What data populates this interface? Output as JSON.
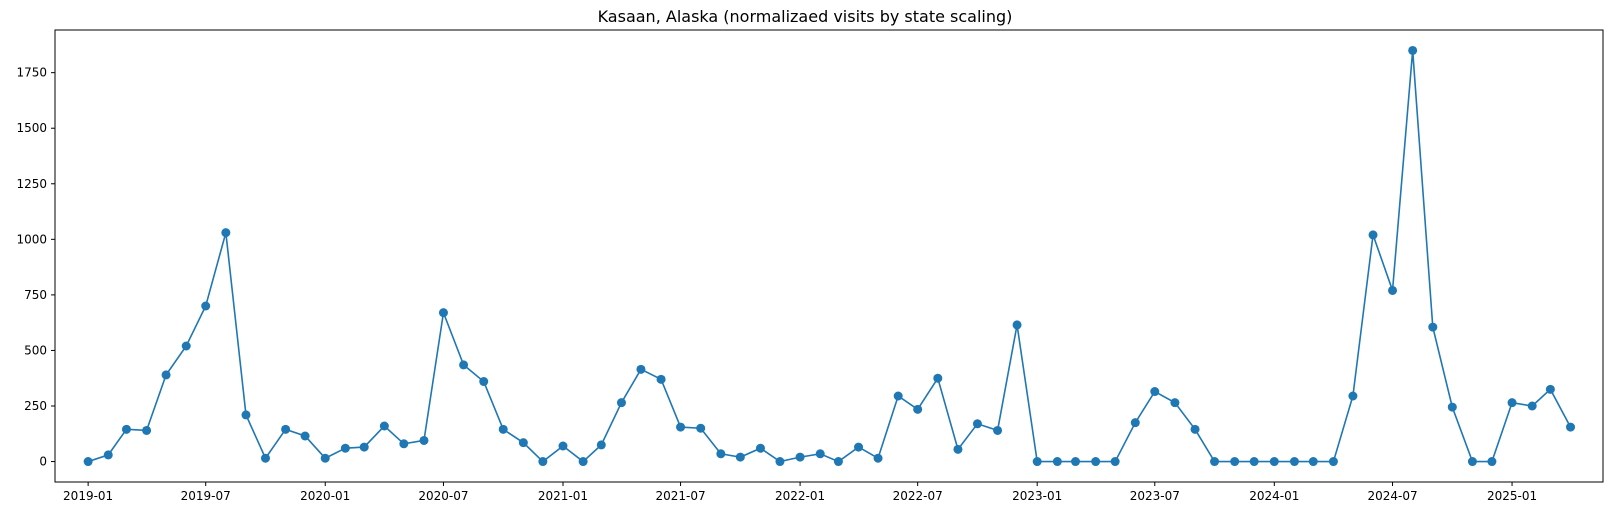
{
  "chart_data": {
    "type": "line",
    "title": "Kasaan, Alaska (normalizaed visits by state scaling)",
    "xlabel": "",
    "ylabel": "",
    "x_ticks": [
      "2019-01",
      "2019-07",
      "2020-01",
      "2020-07",
      "2021-01",
      "2021-07",
      "2022-01",
      "2022-07",
      "2023-01",
      "2023-07",
      "2024-01",
      "2024-07",
      "2025-01"
    ],
    "y_ticks": [
      0,
      250,
      500,
      750,
      1000,
      1250,
      1500,
      1750
    ],
    "xlim": [
      "2018-11-11",
      "2025-05-21"
    ],
    "ylim": [
      -92,
      1942
    ],
    "grid": false,
    "color": "#1f77b4",
    "series": [
      {
        "x": [
          "2019-01",
          "2019-02",
          "2019-03",
          "2019-04",
          "2019-05",
          "2019-06",
          "2019-07",
          "2019-08",
          "2019-09",
          "2019-10",
          "2019-11",
          "2019-12",
          "2020-01",
          "2020-02",
          "2020-03",
          "2020-04",
          "2020-05",
          "2020-06",
          "2020-07",
          "2020-08",
          "2020-09",
          "2020-10",
          "2020-11",
          "2020-12",
          "2021-01",
          "2021-02",
          "2021-03",
          "2021-04",
          "2021-05",
          "2021-06",
          "2021-07",
          "2021-08",
          "2021-09",
          "2021-10",
          "2021-11",
          "2021-12",
          "2022-01",
          "2022-02",
          "2022-03",
          "2022-04",
          "2022-05",
          "2022-06",
          "2022-07",
          "2022-08",
          "2022-09",
          "2022-10",
          "2022-11",
          "2022-12",
          "2023-01",
          "2023-02",
          "2023-03",
          "2023-04",
          "2023-05",
          "2023-06",
          "2023-07",
          "2023-08",
          "2023-09",
          "2023-10",
          "2023-11",
          "2023-12",
          "2024-01",
          "2024-02",
          "2024-03",
          "2024-04",
          "2024-05",
          "2024-06",
          "2024-07",
          "2024-08",
          "2024-09",
          "2024-10",
          "2024-11",
          "2024-12",
          "2025-01",
          "2025-02",
          "2025-03",
          "2025-04"
        ],
        "y": [
          0,
          30,
          145,
          140,
          390,
          520,
          700,
          1030,
          210,
          15,
          145,
          115,
          15,
          60,
          65,
          160,
          80,
          95,
          670,
          435,
          360,
          145,
          85,
          0,
          70,
          0,
          75,
          265,
          415,
          370,
          155,
          150,
          35,
          20,
          60,
          0,
          20,
          35,
          0,
          65,
          15,
          295,
          235,
          375,
          55,
          170,
          140,
          615,
          0,
          0,
          0,
          0,
          0,
          175,
          315,
          265,
          145,
          0,
          0,
          0,
          0,
          0,
          0,
          0,
          295,
          1020,
          770,
          1850,
          605,
          245,
          0,
          0,
          265,
          250,
          325,
          155
        ]
      }
    ]
  }
}
